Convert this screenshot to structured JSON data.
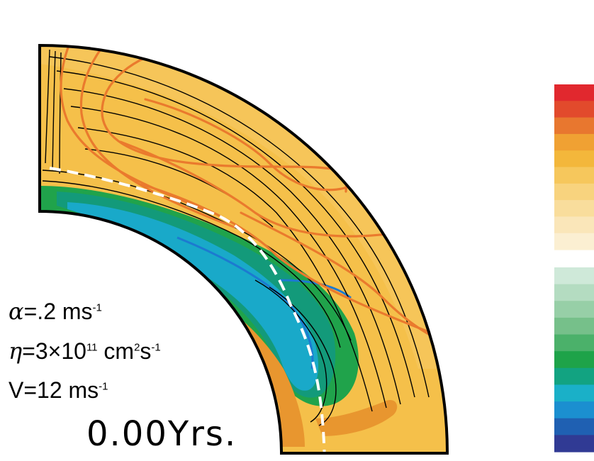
{
  "params": {
    "alpha": {
      "symbol": "α",
      "text": "=.2 ms",
      "exp": "-1"
    },
    "eta": {
      "symbol": "η",
      "text": "=3×10",
      "exp1": "11",
      "text2": " cm",
      "exp2": "2",
      "text3": "s",
      "exp3": "-1"
    },
    "v": {
      "text": "V=12 ms",
      "exp": "-1"
    }
  },
  "time_label": "0.00Yrs.",
  "colorbar": {
    "warm": [
      "#e1282e",
      "#e24a2c",
      "#e8772f",
      "#f0a133",
      "#f3b73b",
      "#f6c75c",
      "#f8d37e",
      "#f9dd9c",
      "#fae6b9",
      "#fbefd2"
    ],
    "cool": [
      "#cfe9d9",
      "#b4dcc1",
      "#97cfa7",
      "#76c08a",
      "#4bb16a",
      "#1ea349",
      "#12a381",
      "#1ab0c8",
      "#1b8fd0",
      "#1f60b2",
      "#303a94"
    ]
  },
  "colors": {
    "background_fill": "#f5c04a",
    "outline": "#000000",
    "field_lines": "#ea7a2d",
    "dashed_boundary": "#ffffff",
    "green_region": "#20a34b",
    "teal_region": "#139a7a",
    "cyan_region": "#19a9c9",
    "blue_contour": "#1c7ad0",
    "orange_patch": "#e8962f"
  }
}
